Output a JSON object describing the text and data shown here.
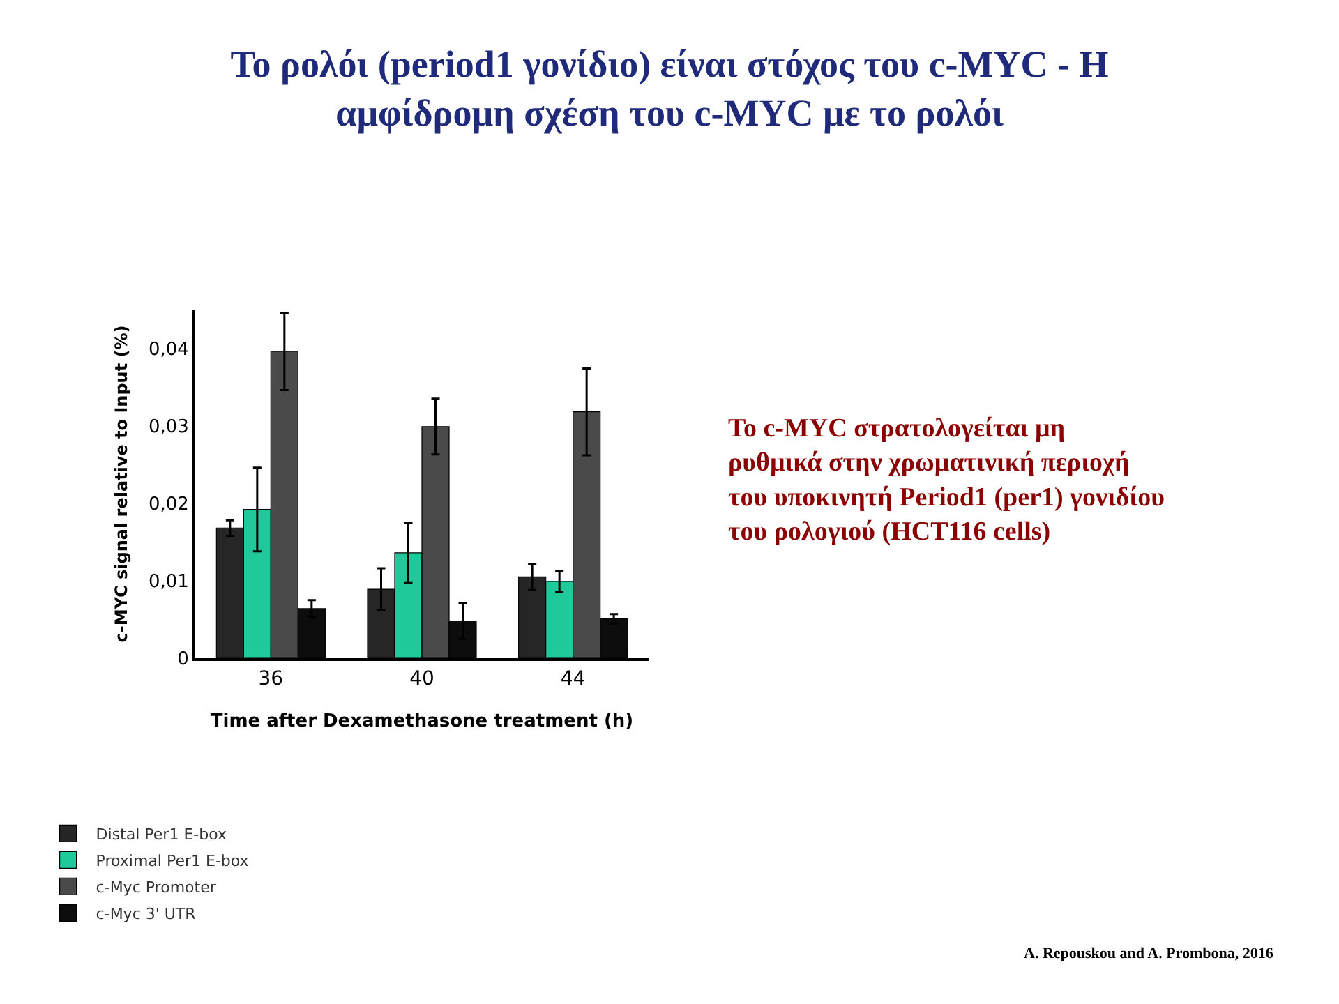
{
  "chart_data": {
    "type": "bar",
    "title": "Το ρολόι (period1 γονίδιο) είναι στόχος του c-MYC - Η\nαμφίδρομη σχέση του c-MYC με το ρολόι",
    "xlabel": "Time after Dexamethasone treatment (h)",
    "ylabel": "c-MYC signal relative to Input (%)",
    "categories": [
      "36",
      "40",
      "44"
    ],
    "series": [
      {
        "name": "Distal Per1 E-box",
        "color": "#262626",
        "values": [
          0.0168,
          0.0089,
          0.0105
        ],
        "errors": [
          0.001,
          0.0027,
          0.0017
        ]
      },
      {
        "name": "Proximal Per1 E-box",
        "color": "#1fc99a",
        "values": [
          0.0192,
          0.0136,
          0.0099
        ],
        "errors": [
          0.0054,
          0.0039,
          0.0014
        ]
      },
      {
        "name": "c-Myc Promoter",
        "color": "#4a4a4a",
        "values": [
          0.0396,
          0.0299,
          0.0318
        ],
        "errors": [
          0.005,
          0.0036,
          0.0056
        ]
      },
      {
        "name": "c-Myc 3' UTR",
        "color": "#0d0d0d",
        "values": [
          0.0064,
          0.0048,
          0.0051
        ],
        "errors": [
          0.0011,
          0.0023,
          0.0006
        ]
      }
    ],
    "ylim": [
      0,
      0.045
    ],
    "yticks": [
      0,
      {
        "value": 0.01,
        "label": "0,01"
      },
      {
        "value": 0.02,
        "label": "0,02"
      },
      {
        "value": 0.03,
        "label": "0,03"
      },
      {
        "value": 0.04,
        "label": "0,04"
      }
    ],
    "grid": false,
    "legend": "bottom left",
    "annotations": [
      "Το c-MYC στρατολογείται μη\nρυθμικά στην χρωματινική περιοχή\nτου υποκινητή Period1 (per1) γονιδίου\nτου ρολογιού (HCT116 cells)",
      "A. Repouskou and A. Prombona, 2016"
    ]
  }
}
